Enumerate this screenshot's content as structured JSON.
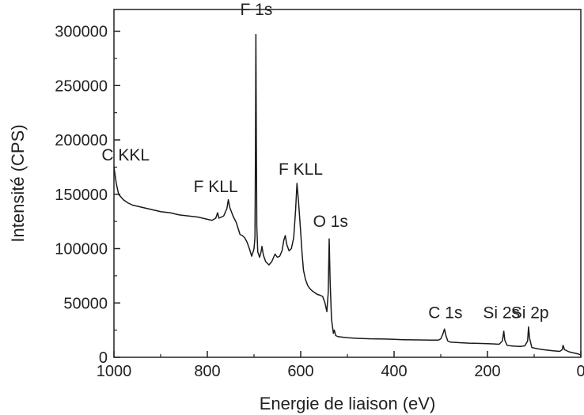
{
  "chart_data": {
    "type": "line",
    "title": "",
    "xlabel": "Energie de liaison (eV)",
    "ylabel": "Intensité (CPS)",
    "xlim": [
      1000,
      0
    ],
    "ylim": [
      0,
      320000
    ],
    "x_ticks": [
      1000,
      800,
      600,
      400,
      200,
      0
    ],
    "y_ticks": [
      0,
      50000,
      100000,
      150000,
      200000,
      250000,
      300000
    ],
    "x_tick_labels": [
      "1000",
      "800",
      "600",
      "400",
      "200",
      "0"
    ],
    "y_tick_labels": [
      "0",
      "50000",
      "100000",
      "150000",
      "200000",
      "250000",
      "300000"
    ],
    "grid": false,
    "line_color": "#1a1a1a",
    "series": [
      {
        "points": [
          [
            1000,
            175000
          ],
          [
            995,
            160000
          ],
          [
            990,
            150000
          ],
          [
            980,
            145000
          ],
          [
            970,
            142000
          ],
          [
            960,
            140000
          ],
          [
            950,
            139000
          ],
          [
            940,
            138000
          ],
          [
            930,
            137000
          ],
          [
            920,
            136000
          ],
          [
            910,
            135000
          ],
          [
            900,
            134000
          ],
          [
            880,
            133000
          ],
          [
            860,
            131000
          ],
          [
            840,
            130000
          ],
          [
            820,
            129000
          ],
          [
            800,
            127000
          ],
          [
            790,
            126000
          ],
          [
            782,
            128000
          ],
          [
            778,
            133000
          ],
          [
            775,
            128000
          ],
          [
            765,
            130000
          ],
          [
            758,
            137000
          ],
          [
            755,
            145000
          ],
          [
            752,
            138000
          ],
          [
            745,
            130000
          ],
          [
            738,
            124000
          ],
          [
            730,
            113000
          ],
          [
            725,
            112000
          ],
          [
            720,
            110000
          ],
          [
            715,
            106000
          ],
          [
            710,
            100000
          ],
          [
            705,
            93000
          ],
          [
            702,
            97000
          ],
          [
            700,
            100000
          ],
          [
            698,
            110000
          ],
          [
            697,
            180000
          ],
          [
            696,
            297000
          ],
          [
            695,
            200000
          ],
          [
            694,
            120000
          ],
          [
            692,
            97000
          ],
          [
            688,
            92000
          ],
          [
            685,
            97000
          ],
          [
            683,
            102000
          ],
          [
            680,
            94000
          ],
          [
            675,
            88000
          ],
          [
            668,
            85000
          ],
          [
            662,
            88000
          ],
          [
            655,
            95000
          ],
          [
            650,
            92000
          ],
          [
            645,
            93000
          ],
          [
            640,
            98000
          ],
          [
            636,
            108000
          ],
          [
            633,
            112000
          ],
          [
            630,
            104000
          ],
          [
            625,
            98000
          ],
          [
            620,
            100000
          ],
          [
            615,
            110000
          ],
          [
            611,
            135000
          ],
          [
            608,
            160000
          ],
          [
            605,
            145000
          ],
          [
            600,
            115000
          ],
          [
            597,
            95000
          ],
          [
            594,
            80000
          ],
          [
            590,
            72000
          ],
          [
            585,
            66000
          ],
          [
            580,
            63000
          ],
          [
            575,
            61000
          ],
          [
            565,
            58000
          ],
          [
            558,
            57000
          ],
          [
            553,
            56000
          ],
          [
            548,
            50000
          ],
          [
            544,
            42000
          ],
          [
            541,
            60000
          ],
          [
            539,
            109000
          ],
          [
            537,
            70000
          ],
          [
            534,
            35000
          ],
          [
            530,
            22000
          ],
          [
            528,
            25000
          ],
          [
            525,
            20000
          ],
          [
            520,
            19000
          ],
          [
            500,
            18000
          ],
          [
            480,
            17500
          ],
          [
            450,
            17000
          ],
          [
            420,
            16800
          ],
          [
            400,
            16500
          ],
          [
            380,
            16200
          ],
          [
            350,
            16000
          ],
          [
            320,
            15800
          ],
          [
            305,
            15800
          ],
          [
            300,
            17000
          ],
          [
            295,
            22000
          ],
          [
            292,
            26000
          ],
          [
            289,
            20000
          ],
          [
            285,
            15000
          ],
          [
            280,
            14000
          ],
          [
            260,
            13500
          ],
          [
            240,
            13000
          ],
          [
            220,
            12800
          ],
          [
            200,
            12500
          ],
          [
            185,
            12300
          ],
          [
            175,
            12000
          ],
          [
            168,
            15000
          ],
          [
            165,
            24000
          ],
          [
            163,
            16000
          ],
          [
            158,
            11000
          ],
          [
            150,
            10500
          ],
          [
            140,
            10200
          ],
          [
            130,
            10000
          ],
          [
            120,
            10500
          ],
          [
            114,
            15000
          ],
          [
            112,
            28000
          ],
          [
            110,
            18000
          ],
          [
            105,
            9000
          ],
          [
            95,
            8000
          ],
          [
            80,
            7000
          ],
          [
            60,
            6000
          ],
          [
            45,
            5500
          ],
          [
            40,
            7000
          ],
          [
            38,
            11000
          ],
          [
            35,
            7000
          ],
          [
            25,
            5000
          ],
          [
            15,
            4000
          ],
          [
            5,
            3000
          ],
          [
            0,
            2000
          ]
        ]
      }
    ],
    "annotations": [
      {
        "text": "F 1s",
        "x": 695,
        "y": 315000
      },
      {
        "text": "C KKL",
        "x": 975,
        "y": 181000
      },
      {
        "text": "F KLL",
        "x": 782,
        "y": 152000
      },
      {
        "text": "F KLL",
        "x": 600,
        "y": 168000
      },
      {
        "text": "O 1s",
        "x": 536,
        "y": 120000
      },
      {
        "text": "C 1s",
        "x": 290,
        "y": 36000
      },
      {
        "text": "Si 2s",
        "x": 170,
        "y": 36000
      },
      {
        "text": "Si 2p",
        "x": 109,
        "y": 36000
      }
    ]
  }
}
